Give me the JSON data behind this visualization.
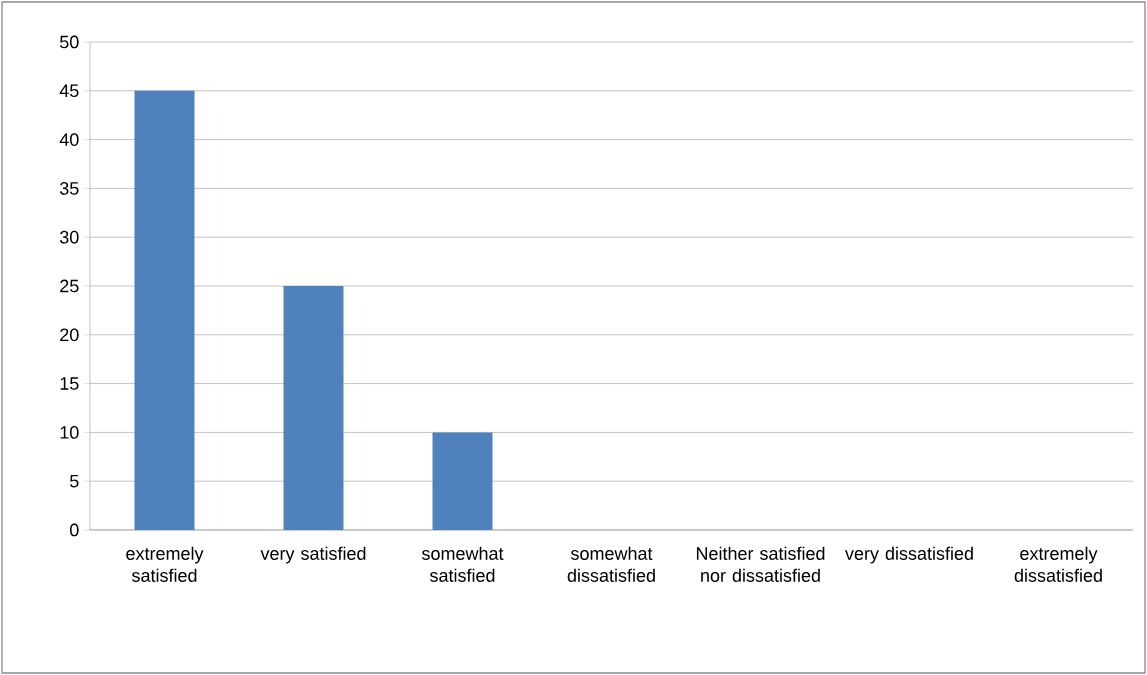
{
  "chart_data": {
    "type": "bar",
    "categories": [
      "extremely satisfied",
      "very satisfied",
      "somewhat satisfied",
      "somewhat dissatisfied",
      "Neither satisfied nor dissatisfied",
      "very dissatisfied",
      "extremely dissatisfied"
    ],
    "values": [
      45,
      25,
      10,
      0,
      0,
      0,
      0
    ],
    "color": "#4f81bd",
    "ylim": [
      0,
      50
    ],
    "yticks": [
      0,
      5,
      10,
      15,
      20,
      25,
      30,
      35,
      40,
      45,
      50
    ],
    "grid": "y"
  }
}
